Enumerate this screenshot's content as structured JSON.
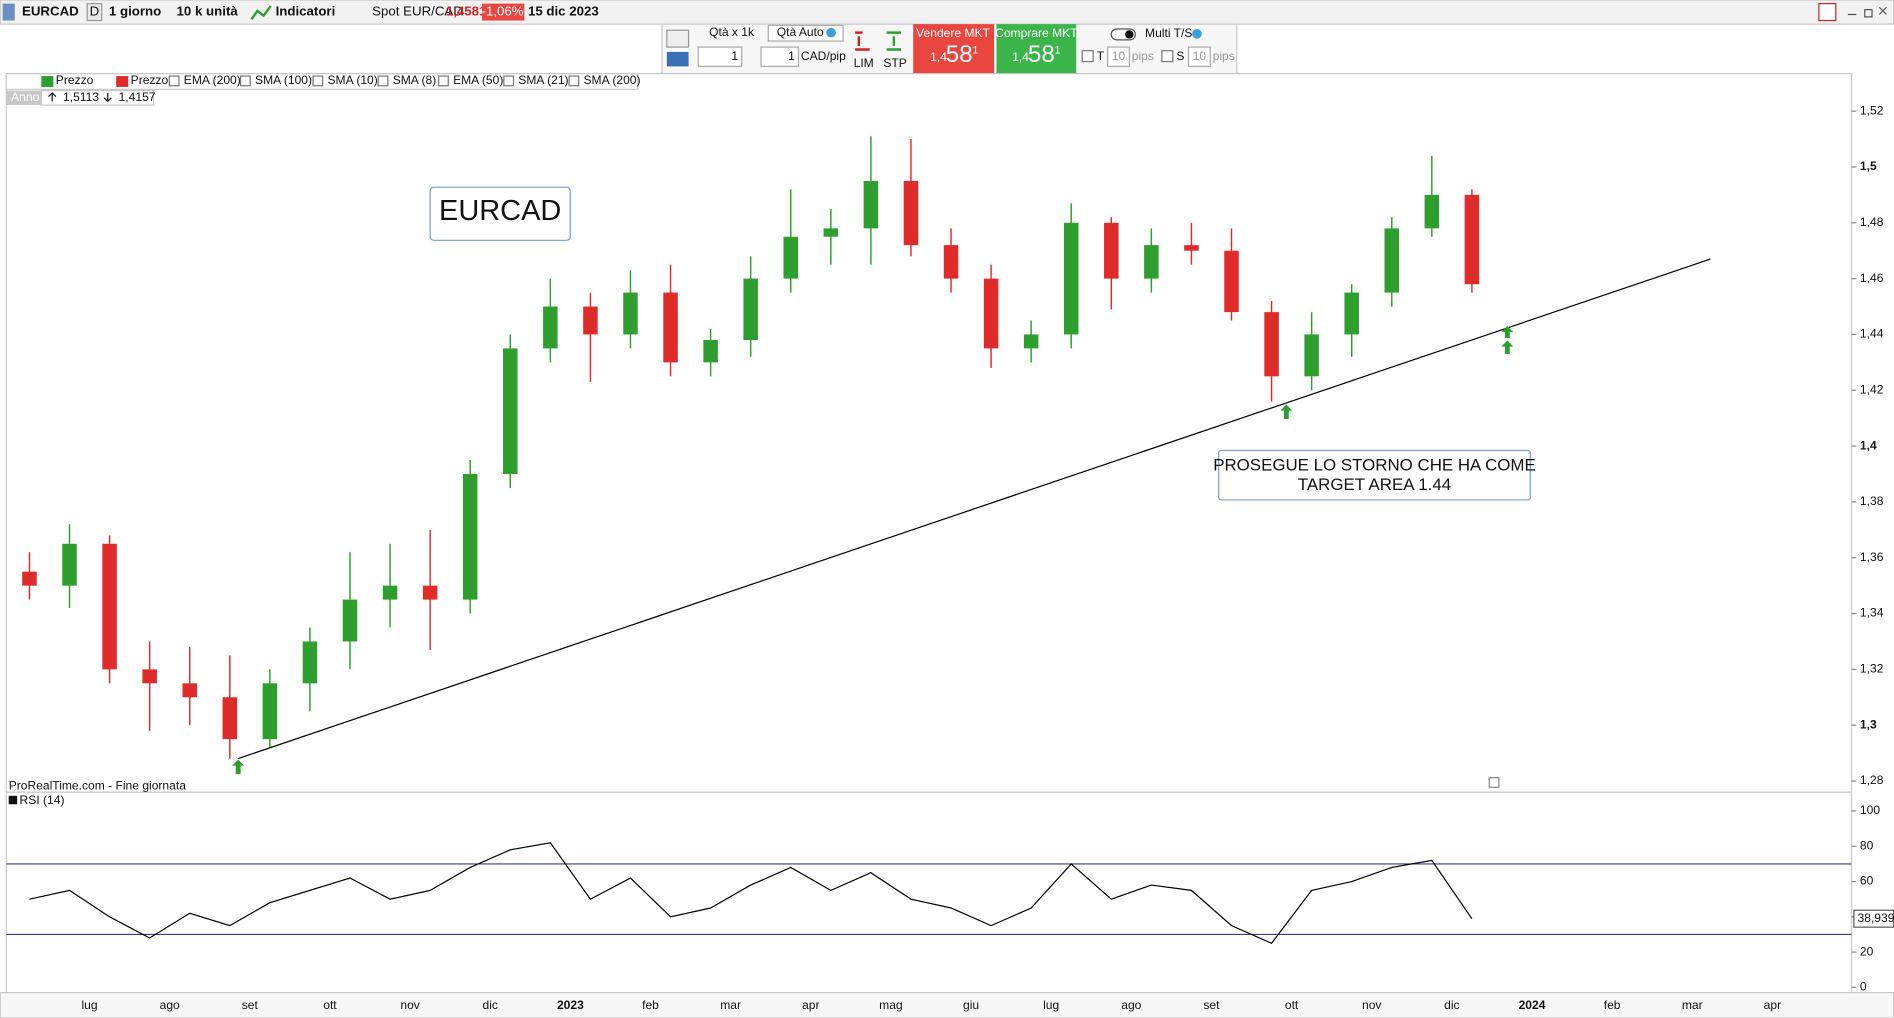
{
  "toolbar": {
    "symbol": "EURCAD",
    "period_key": "D",
    "period": "1 giorno",
    "size": "10 k unità",
    "indicators": "Indicatori",
    "spot_label": "Spot EUR/CAD",
    "spot_price": "1,4581",
    "change": "-1,06%",
    "date": "15 dic 2023"
  },
  "order_panel": {
    "qty_label": "Qtà  x 1k",
    "qty_auto": "Qtà Auto",
    "qty": "1",
    "pip_value": "1",
    "pip_unit": "CAD/pip",
    "lim": "LIM",
    "stp": "STP",
    "sell_label": "Vendere MKT",
    "sell_big": "1,4",
    "sell_pips": "58",
    "sell_frac": "1",
    "buy_label": "Comprare MKT",
    "buy_big": "1,4",
    "buy_pips": "58",
    "buy_frac": "1",
    "multi": "Multi T/S",
    "t": "T",
    "t_pips": "10",
    "t_unit": "pips",
    "s": "S",
    "s_pips": "10",
    "s_unit": "pips"
  },
  "legend": {
    "items": [
      "Prezzo",
      "Prezzo",
      "EMA (200)",
      "SMA (100)",
      "SMA (10)",
      "SMA (8)",
      "EMA (50)",
      "SMA (21)",
      "SMA (200)"
    ],
    "year": "Anno",
    "year_high": "1,5113",
    "year_low": "1,4157",
    "source": "ProRealTime.com - Fine giornata"
  },
  "chart_data": [
    {
      "type": "candlestick",
      "categories": [
        null,
        null,
        "lug",
        null,
        "ago",
        null,
        "set",
        null,
        "ott",
        null,
        "nov",
        null,
        "dic",
        null,
        "2023",
        null,
        "feb",
        null,
        "mar",
        null,
        "apr",
        null,
        "mag",
        null,
        "giu",
        null,
        "lug",
        null,
        "ago",
        null,
        "set",
        null,
        "ott",
        null,
        "nov",
        null,
        "dic",
        null,
        "2024",
        null,
        "feb",
        null,
        "mar",
        null,
        "apr",
        null
      ],
      "open": [
        1.355,
        1.35,
        1.365,
        1.32,
        1.315,
        1.31,
        1.295,
        1.315,
        1.33,
        1.345,
        1.35,
        1.345,
        1.39,
        1.435,
        1.45,
        1.44,
        1.455,
        1.43,
        1.438,
        1.46,
        1.475,
        1.478,
        1.495,
        1.472,
        1.46,
        1.435,
        1.44,
        1.48,
        1.46,
        1.472,
        1.47,
        1.448,
        1.425,
        1.44,
        1.455,
        1.478,
        1.49,
        null,
        null,
        null,
        null,
        null,
        null,
        null,
        null,
        null
      ],
      "high": [
        1.362,
        1.372,
        1.368,
        1.33,
        1.328,
        1.325,
        1.32,
        1.335,
        1.362,
        1.365,
        1.37,
        1.395,
        1.44,
        1.46,
        1.455,
        1.463,
        1.465,
        1.442,
        1.468,
        1.492,
        1.485,
        1.511,
        1.51,
        1.478,
        1.465,
        1.445,
        1.487,
        1.482,
        1.478,
        1.48,
        1.478,
        1.452,
        1.448,
        1.458,
        1.482,
        1.504,
        1.492,
        null,
        null,
        null,
        null,
        null,
        null,
        null,
        null,
        null
      ],
      "low": [
        1.345,
        1.342,
        1.315,
        1.298,
        1.3,
        1.288,
        1.292,
        1.305,
        1.32,
        1.335,
        1.327,
        1.34,
        1.385,
        1.43,
        1.423,
        1.435,
        1.425,
        1.425,
        1.432,
        1.455,
        1.465,
        1.465,
        1.468,
        1.455,
        1.428,
        1.43,
        1.435,
        1.449,
        1.455,
        1.465,
        1.445,
        1.416,
        1.42,
        1.432,
        1.45,
        1.475,
        1.455,
        null,
        null,
        null,
        null,
        null,
        null,
        null,
        null,
        null
      ],
      "close": [
        1.35,
        1.365,
        1.32,
        1.315,
        1.31,
        1.295,
        1.315,
        1.33,
        1.345,
        1.35,
        1.345,
        1.39,
        1.435,
        1.45,
        1.44,
        1.455,
        1.43,
        1.438,
        1.46,
        1.475,
        1.478,
        1.495,
        1.472,
        1.46,
        1.435,
        1.44,
        1.48,
        1.46,
        1.472,
        1.47,
        1.448,
        1.425,
        1.44,
        1.455,
        1.478,
        1.49,
        1.458,
        null,
        null,
        null,
        null,
        null,
        null,
        null,
        null,
        null
      ],
      "up_color": "#2e9e2e",
      "down_color": "#e02b2b",
      "ylim": [
        1.276,
        1.533
      ],
      "yticks": [
        {
          "value": 1.28,
          "label": "1,28"
        },
        {
          "value": 1.3,
          "label": "1,3"
        },
        {
          "value": 1.32,
          "label": "1,32"
        },
        {
          "value": 1.34,
          "label": "1,34"
        },
        {
          "value": 1.36,
          "label": "1,36"
        },
        {
          "value": 1.38,
          "label": "1,38"
        },
        {
          "value": 1.4,
          "label": "1,4"
        },
        {
          "value": 1.42,
          "label": "1,42"
        },
        {
          "value": 1.44,
          "label": "1,44"
        },
        {
          "value": 1.46,
          "label": "1,46"
        },
        {
          "value": 1.48,
          "label": "1,48"
        },
        {
          "value": 1.5,
          "label": "1,5"
        },
        {
          "value": 1.52,
          "label": "1,52"
        }
      ],
      "trendline": {
        "values": [
          1.288,
          1.467
        ],
        "color": "#000000"
      },
      "annotations": [
        "EURCAD",
        [
          "PROSEGUE LO STORNO CHE HA COME",
          "TARGET AREA 1.44"
        ]
      ]
    },
    {
      "type": "line",
      "title": "RSI (14)",
      "color": "#000000",
      "values": [
        50,
        55,
        40,
        28,
        42,
        35,
        48,
        55,
        62,
        50,
        55,
        68,
        78,
        82,
        50,
        62,
        40,
        45,
        58,
        68,
        55,
        65,
        50,
        45,
        35,
        45,
        70,
        50,
        58,
        55,
        35,
        25,
        55,
        60,
        68,
        72,
        38.939,
        null,
        null,
        null,
        null,
        null,
        null,
        null,
        null,
        null
      ],
      "value_labels": [
        null,
        null,
        null,
        null,
        null,
        null,
        null,
        null,
        null,
        null,
        null,
        null,
        null,
        null,
        null,
        null,
        null,
        null,
        null,
        null,
        null,
        null,
        null,
        null,
        null,
        null,
        null,
        null,
        null,
        null,
        null,
        null,
        null,
        null,
        null,
        null,
        "38,939",
        null,
        null,
        null,
        null,
        null,
        null,
        null,
        null,
        null
      ],
      "ylim": [
        -3,
        110
      ],
      "yticks": [
        0,
        20,
        40,
        60,
        80,
        100
      ],
      "levels": [
        30,
        70
      ],
      "level_color": "#3a3a8c"
    }
  ]
}
